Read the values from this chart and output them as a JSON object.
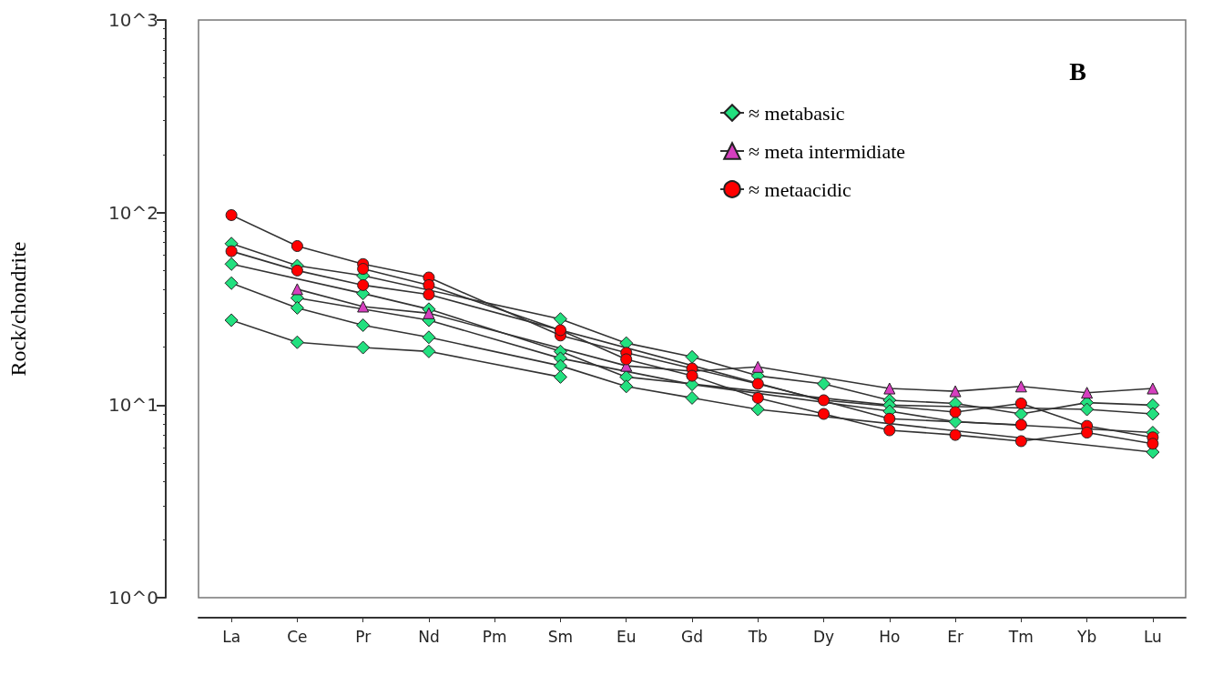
{
  "chart_data": {
    "type": "line",
    "ylabel": "Rock/chondrite",
    "annotations": [
      "B"
    ],
    "categories": [
      "La",
      "Ce",
      "Pr",
      "Nd",
      "Pm",
      "Sm",
      "Eu",
      "Gd",
      "Tb",
      "Dy",
      "Ho",
      "Er",
      "Tm",
      "Yb",
      "Lu"
    ],
    "log": "y",
    "ylim": [
      1,
      1000
    ],
    "yticks": [
      {
        "value": 1,
        "label": "10^0"
      },
      {
        "value": 10,
        "label": "10^1"
      },
      {
        "value": 100,
        "label": "10^2"
      },
      {
        "value": 1000,
        "label": "10^3"
      }
    ],
    "grid": false,
    "legend": "top right",
    "line_style": "solid",
    "series": [
      {
        "name": "≈ metabasic",
        "color": "#22e07f",
        "marker": "diamond",
        "values": [
          69,
          53,
          47,
          null,
          null,
          28,
          21,
          17.8,
          14.2,
          12.9,
          10.6,
          10.2,
          9,
          10.3,
          10
        ]
      },
      {
        "color": "#22e07f",
        "marker": "diamond",
        "values": [
          54,
          null,
          38,
          31.5,
          null,
          19,
          14,
          null,
          null,
          null,
          10,
          null,
          null,
          9.5,
          9
        ]
      },
      {
        "color": "#22e07f",
        "marker": "diamond",
        "values": [
          null,
          36,
          null,
          27.6,
          null,
          17.5,
          null,
          12.8,
          null,
          null,
          9.3,
          8.2,
          null,
          null,
          7.2
        ]
      },
      {
        "color": "#22e07f",
        "marker": "diamond",
        "values": [
          43,
          32,
          26,
          22.5,
          null,
          16,
          12.5,
          10.9,
          9.5,
          null,
          null,
          null,
          null,
          null,
          5.7
        ]
      },
      {
        "color": "#22e07f",
        "marker": "diamond",
        "values": [
          27.6,
          21.2,
          19.9,
          19,
          null,
          14,
          null,
          null,
          null,
          null,
          null,
          null,
          null,
          null,
          null
        ]
      },
      {
        "name": "≈ meta intermidiate",
        "color": "#d63fbf",
        "marker": "triangle",
        "values": [
          null,
          40,
          32.5,
          30,
          null,
          null,
          16,
          15,
          15.8,
          null,
          12.2,
          11.8,
          12.5,
          11.6,
          12.2
        ]
      },
      {
        "name": "≈ metaacidic",
        "color": "#ff0000",
        "marker": "circle",
        "values": [
          97,
          67,
          54,
          46,
          null,
          23,
          18.7,
          15.5,
          12.9,
          10.6,
          null,
          9.2,
          10.2,
          7.8,
          6.8
        ]
      },
      {
        "color": "#ff0000",
        "marker": "circle",
        "values": [
          null,
          null,
          51,
          42,
          null,
          24.5,
          17.3,
          14.2,
          10.9,
          9,
          7.4,
          7,
          6.5,
          7.2,
          6.3
        ]
      },
      {
        "color": "#ff0000",
        "marker": "circle",
        "values": [
          63,
          50,
          42,
          37.5,
          null,
          null,
          null,
          null,
          null,
          null,
          8.5,
          null,
          7.9,
          null,
          null
        ]
      }
    ]
  }
}
